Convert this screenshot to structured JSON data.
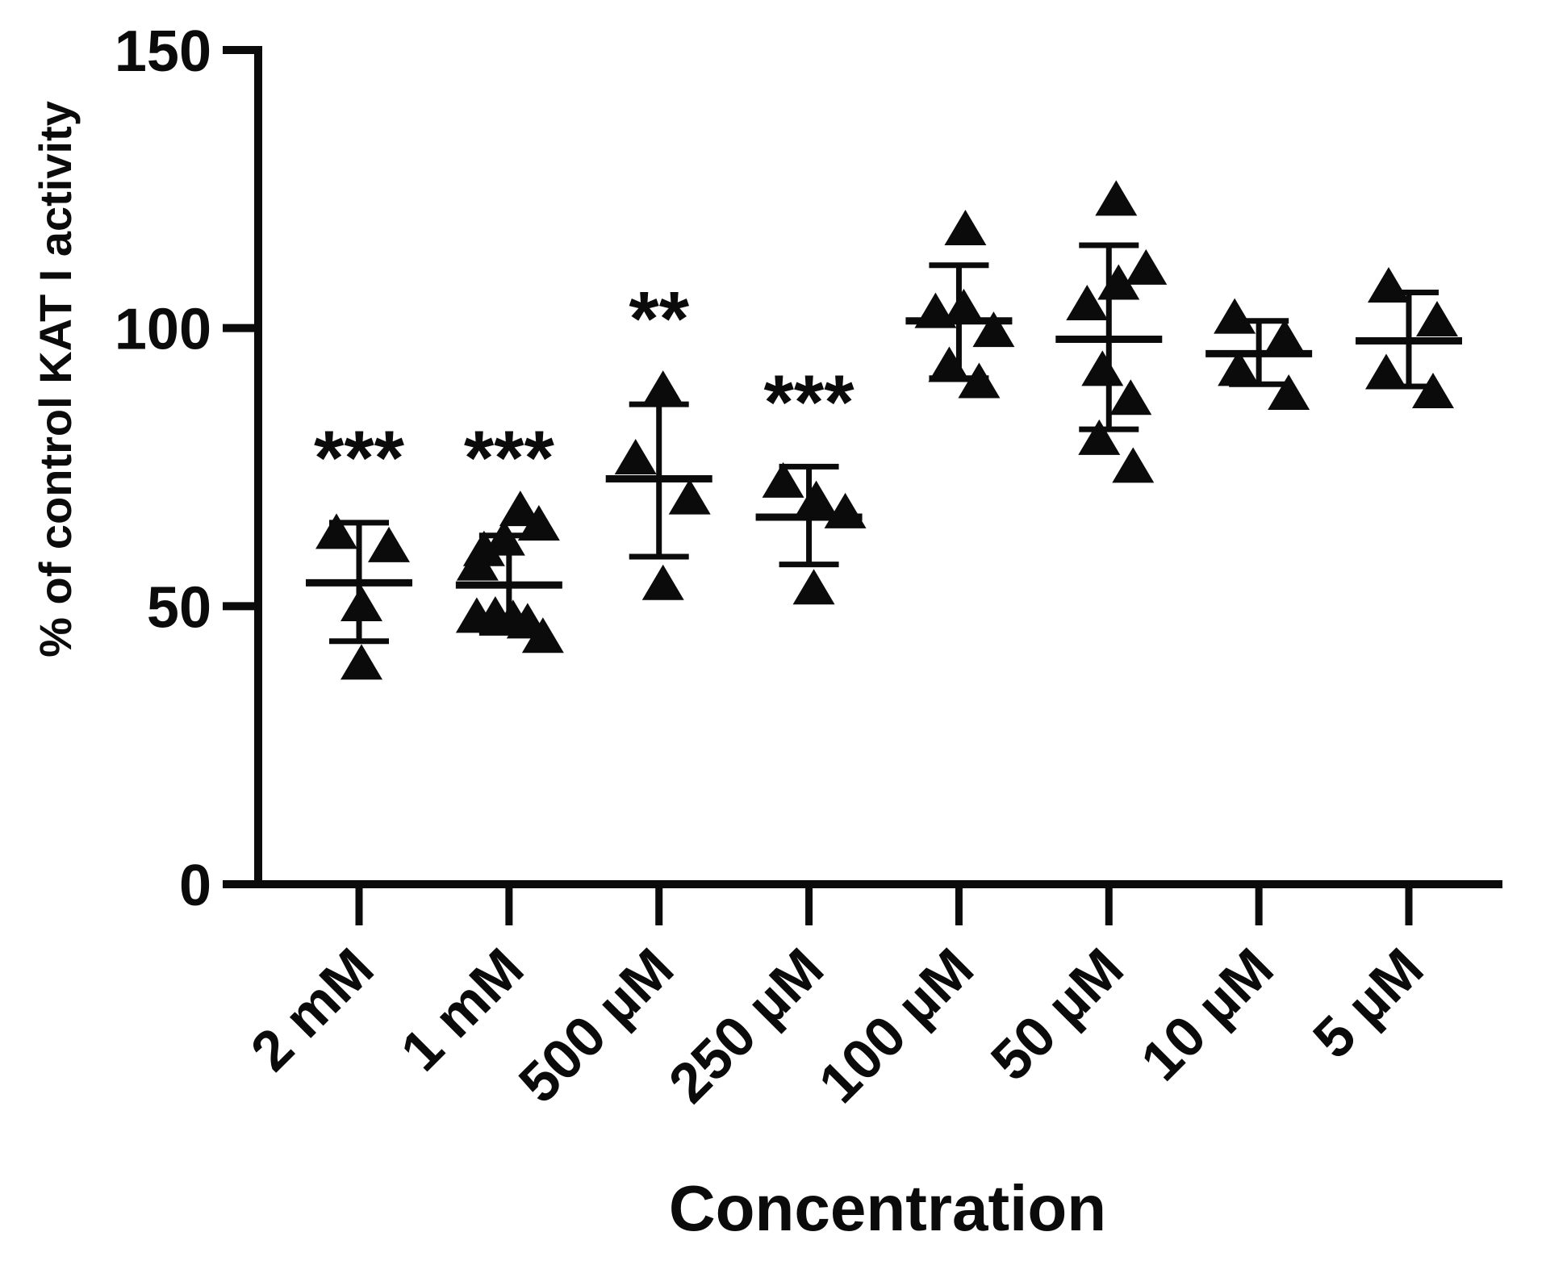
{
  "figure": {
    "background": "#ffffff",
    "ink_color": "#0b0b0b",
    "significance_color": "#05050f"
  },
  "chart_data": {
    "type": "scatter",
    "title": "",
    "xlabel": "Concentration",
    "ylabel": "% of control KAT I activity",
    "ylim": [
      0,
      150
    ],
    "yticks": [
      0,
      50,
      100,
      150
    ],
    "marker": "filled-triangle-up",
    "error_bars": "mean line with upper and lower whisker caps",
    "legend_position": "none",
    "grid": false,
    "groups": [
      {
        "label": "2 mM",
        "significance": "***",
        "sig_value": 80,
        "mean": 54.2,
        "whisker_top": 65.0,
        "whisker_bottom": 43.7,
        "points": [
          {
            "dx": -28,
            "v": 63.2
          },
          {
            "dx": 37,
            "v": 60.8
          },
          {
            "dx": 3,
            "v": 50.2
          },
          {
            "dx": 3,
            "v": 39.7
          }
        ]
      },
      {
        "label": "1 mM",
        "significance": "***",
        "sig_value": 80,
        "mean": 53.8,
        "whisker_top": 62.7,
        "whisker_bottom": 45.2,
        "points": [
          {
            "dx": 14,
            "v": 67.3
          },
          {
            "dx": 37,
            "v": 64.7
          },
          {
            "dx": -6,
            "v": 62.0
          },
          {
            "dx": -31,
            "v": 60.1
          },
          {
            "dx": -39,
            "v": 57.5
          },
          {
            "dx": -40,
            "v": 48.1
          },
          {
            "dx": -17,
            "v": 48.3
          },
          {
            "dx": 5,
            "v": 47.7
          },
          {
            "dx": 23,
            "v": 47.1
          },
          {
            "dx": 42,
            "v": 44.5
          }
        ]
      },
      {
        "label": "500 µM",
        "significance": "**",
        "sig_value": 105,
        "mean": 72.9,
        "whisker_top": 86.3,
        "whisker_bottom": 58.9,
        "points": [
          {
            "dx": 5,
            "v": 88.9
          },
          {
            "dx": -29,
            "v": 76.6
          },
          {
            "dx": 38,
            "v": 69.4
          },
          {
            "dx": 5,
            "v": 54.0
          }
        ]
      },
      {
        "label": "250 µM",
        "significance": "***",
        "sig_value": 90,
        "mean": 66.0,
        "whisker_top": 75.1,
        "whisker_bottom": 57.5,
        "points": [
          {
            "dx": -32,
            "v": 72.4
          },
          {
            "dx": 9,
            "v": 69.1
          },
          {
            "dx": 45,
            "v": 66.9
          },
          {
            "dx": 6,
            "v": 53.2
          }
        ]
      },
      {
        "label": "100 µM",
        "significance": "",
        "sig_value": null,
        "mean": 101.3,
        "whisker_top": 111.3,
        "whisker_bottom": 91.0,
        "points": [
          {
            "dx": 8,
            "v": 117.8
          },
          {
            "dx": -29,
            "v": 102.9
          },
          {
            "dx": 6,
            "v": 103.6
          },
          {
            "dx": 43,
            "v": 99.5
          },
          {
            "dx": -12,
            "v": 93.2
          },
          {
            "dx": 25,
            "v": 90.3
          }
        ]
      },
      {
        "label": "50 µM",
        "significance": "",
        "sig_value": null,
        "mean": 98.0,
        "whisker_top": 114.9,
        "whisker_bottom": 81.8,
        "points": [
          {
            "dx": 9,
            "v": 123.1
          },
          {
            "dx": 46,
            "v": 110.7
          },
          {
            "dx": 12,
            "v": 108.0
          },
          {
            "dx": -27,
            "v": 104.3
          },
          {
            "dx": -8,
            "v": 92.5
          },
          {
            "dx": 27,
            "v": 87.3
          },
          {
            "dx": -12,
            "v": 80.1
          },
          {
            "dx": 30,
            "v": 75.1
          }
        ]
      },
      {
        "label": "10 µM",
        "significance": "",
        "sig_value": null,
        "mean": 95.4,
        "whisker_top": 101.3,
        "whisker_bottom": 89.9,
        "points": [
          {
            "dx": -30,
            "v": 101.9
          },
          {
            "dx": 32,
            "v": 98.1
          },
          {
            "dx": -25,
            "v": 92.5
          },
          {
            "dx": 37,
            "v": 88.2
          }
        ]
      },
      {
        "label": "5 µM",
        "significance": "",
        "sig_value": null,
        "mean": 97.7,
        "whisker_top": 106.4,
        "whisker_bottom": 89.5,
        "points": [
          {
            "dx": -25,
            "v": 107.5
          },
          {
            "dx": 35,
            "v": 101.4
          },
          {
            "dx": -28,
            "v": 91.9
          },
          {
            "dx": 30,
            "v": 88.5
          }
        ]
      }
    ]
  }
}
